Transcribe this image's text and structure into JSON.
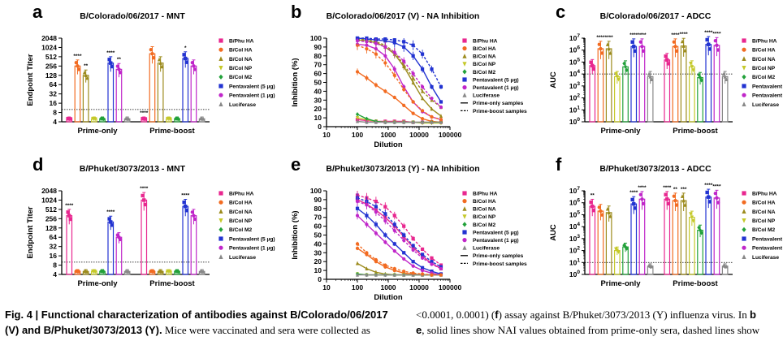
{
  "legend_colors": {
    "B/Phu HA": "#e8278f",
    "B/Col HA": "#f26b21",
    "B/Col NA": "#9c8b1d",
    "B/Col NP": "#c5c92a",
    "B/Col M2": "#22a13a",
    "Pentavalent (5 µg)": "#2233d1",
    "Pentavalent (1 µg)": "#c026c9",
    "Luciferase": "#888888"
  },
  "caption": {
    "left_line1_bold": "Fig. 4 | Functional characterization of antibodies against B/Colorado/06/2017",
    "left_line2_bold": "(V) and B/Phuket/3073/2013 (Y).",
    "left_line2_rest": " Mice were vaccinated and sera were collected as",
    "right_line1_a": "<0.0001, 0.0001) (",
    "right_line1_f": "f",
    "right_line1_b": ") assay against B/Phuket/3073/2013 (Y) influenza virus. In ",
    "right_line1_bold_b": "b",
    "right_line2_e": "e",
    "right_line2_rest": ", solid lines show NAI values obtained from prime-only sera, dashed lines show"
  },
  "chart_data": [
    {
      "panel": "a",
      "type": "bar",
      "title": "B/Colorado/06/2017 - MNT",
      "ylabel": "Endpoint Titer",
      "xlabel": "",
      "log_base": 2,
      "yticks": [
        "2048",
        "1024",
        "512",
        "256",
        "128",
        "64",
        "32",
        "16",
        "8",
        "4"
      ],
      "ylim": [
        4,
        2048
      ],
      "threshold": 10,
      "groups": [
        "Prime-only",
        "Prime-boost"
      ],
      "series": [
        {
          "name": "B/Phu HA",
          "values": [
            5,
            5
          ]
        },
        {
          "name": "B/Col HA",
          "values": [
            256,
            640
          ]
        },
        {
          "name": "B/Col NA",
          "values": [
            128,
            320
          ]
        },
        {
          "name": "B/Col NP",
          "values": [
            5,
            5
          ]
        },
        {
          "name": "B/Col M2",
          "values": [
            5,
            5
          ]
        },
        {
          "name": "Pentavalent (5 µg)",
          "values": [
            320,
            450
          ]
        },
        {
          "name": "Pentavalent (1 µg)",
          "values": [
            200,
            256
          ]
        },
        {
          "name": "Luciferase",
          "values": [
            5,
            5
          ]
        }
      ],
      "significance": [
        [
          "",
          "****",
          "**",
          "",
          "",
          "****",
          "**",
          ""
        ],
        [
          "****",
          "",
          "",
          "",
          "",
          "*",
          "",
          ""
        ]
      ],
      "legend": [
        "B/Phu HA",
        "B/Col HA",
        "B/Col NA",
        "B/Col NP",
        "B/Col M2",
        "Pentavalent (5 µg)",
        "Pentavalent (1 µg)",
        "Luciferase"
      ]
    },
    {
      "panel": "b",
      "type": "line",
      "title": "B/Colorado/06/2017 (V) - NA Inhibition",
      "ylabel": "Inhibition (%)",
      "xlabel": "Dilution",
      "xscale": "log",
      "xticks": [
        "10",
        "100",
        "1000",
        "10000",
        "100000"
      ],
      "yticks": [
        "0",
        "10",
        "20",
        "30",
        "40",
        "50",
        "60",
        "70",
        "80",
        "90",
        "100"
      ],
      "x": [
        100,
        200,
        400,
        800,
        1600,
        3200,
        6400,
        12800,
        25600,
        51200
      ],
      "series": [
        {
          "name": "B/Phu HA",
          "style": "solid",
          "values": [
            8,
            7,
            6,
            6,
            6,
            6,
            5,
            5,
            5,
            5
          ]
        },
        {
          "name": "B/Col HA",
          "style": "solid",
          "values": [
            62,
            55,
            47,
            40,
            33,
            24,
            15,
            9,
            6,
            5
          ]
        },
        {
          "name": "B/Col NA",
          "style": "solid",
          "values": [
            98,
            97,
            95,
            90,
            82,
            68,
            50,
            32,
            20,
            12
          ]
        },
        {
          "name": "B/Col NP",
          "style": "solid",
          "values": [
            10,
            8,
            6,
            5,
            5,
            5,
            5,
            4,
            4,
            4
          ]
        },
        {
          "name": "B/Col M2",
          "style": "solid",
          "values": [
            14,
            9,
            6,
            5,
            5,
            5,
            5,
            5,
            5,
            5
          ]
        },
        {
          "name": "Pentavalent (5 µg)",
          "style": "solid",
          "values": [
            100,
            99,
            98,
            97,
            95,
            90,
            80,
            65,
            45,
            28
          ]
        },
        {
          "name": "Pentavalent (1 µg)",
          "style": "solid",
          "values": [
            93,
            92,
            88,
            80,
            65,
            45,
            28,
            17,
            11,
            8
          ]
        },
        {
          "name": "Luciferase",
          "style": "solid",
          "values": [
            6,
            5,
            5,
            5,
            5,
            5,
            5,
            5,
            5,
            5
          ]
        },
        {
          "name": "B/Col HA",
          "style": "dashed",
          "values": [
            92,
            88,
            82,
            72,
            58,
            42,
            28,
            18,
            11,
            8
          ]
        },
        {
          "name": "B/Col NA",
          "style": "dashed",
          "values": [
            99,
            98,
            96,
            92,
            84,
            70,
            55,
            40,
            30,
            22
          ]
        },
        {
          "name": "Pentavalent (5 µg)",
          "style": "dashed",
          "values": [
            100,
            100,
            99,
            99,
            98,
            96,
            92,
            82,
            65,
            45
          ]
        },
        {
          "name": "Pentavalent (1 µg)",
          "style": "dashed",
          "values": [
            97,
            96,
            94,
            90,
            84,
            74,
            60,
            45,
            32,
            22
          ]
        }
      ],
      "legend": [
        "B/Phu HA",
        "B/Col HA",
        "B/Col NA",
        "B/Col NP",
        "B/Col M2",
        "Pentavalent (5 µg)",
        "Pentavalent (1 µg)",
        "Luciferase",
        "Prime-only samples",
        "Prime-boost samples"
      ]
    },
    {
      "panel": "c",
      "type": "bar",
      "title": "B/Colorado/06/2017 - ADCC",
      "ylabel": "AUC",
      "xlabel": "",
      "log_base": 10,
      "yticks": [
        "10^0",
        "10^1",
        "10^2",
        "10^3",
        "10^4",
        "10^5",
        "10^6",
        "10^7"
      ],
      "ylim": [
        1,
        10000000
      ],
      "threshold": 10000,
      "groups": [
        "Prime-only",
        "Prime-boost"
      ],
      "series": [
        {
          "name": "B/Phu HA",
          "values": [
            50000,
            150000
          ]
        },
        {
          "name": "B/Col HA",
          "values": [
            1300000,
            2000000
          ]
        },
        {
          "name": "B/Col NA",
          "values": [
            1300000,
            2200000
          ]
        },
        {
          "name": "B/Col NP",
          "values": [
            6000,
            40000
          ]
        },
        {
          "name": "B/Col M2",
          "values": [
            40000,
            5000
          ]
        },
        {
          "name": "Pentavalent (5 µg)",
          "values": [
            2000000,
            3000000
          ]
        },
        {
          "name": "Pentavalent (1 µg)",
          "values": [
            2000000,
            2500000
          ]
        },
        {
          "name": "Luciferase",
          "values": [
            6000,
            6000
          ]
        }
      ],
      "significance": [
        [
          "",
          "****",
          "****",
          "",
          "",
          "****",
          "****",
          ""
        ],
        [
          "",
          "****",
          "****",
          "",
          "",
          "****",
          "****",
          ""
        ]
      ],
      "legend": [
        "B/Phu HA",
        "B/Col HA",
        "B/Col NA",
        "B/Col NP",
        "B/Col M2",
        "Pentavalent (5 µg)",
        "Pentavalent (1 µg)",
        "Luciferase"
      ]
    },
    {
      "panel": "d",
      "type": "bar",
      "title": "B/Phuket/3073/2013 - MNT",
      "ylabel": "Endpoint Titer",
      "xlabel": "",
      "log_base": 2,
      "yticks": [
        "2048",
        "1024",
        "512",
        "256",
        "128",
        "64",
        "32",
        "16",
        "8",
        "4"
      ],
      "ylim": [
        4,
        2048
      ],
      "threshold": 10,
      "groups": [
        "Prime-only",
        "Prime-boost"
      ],
      "series": [
        {
          "name": "B/Phu HA",
          "values": [
            320,
            1024
          ]
        },
        {
          "name": "B/Col HA",
          "values": [
            5,
            5
          ]
        },
        {
          "name": "B/Col NA",
          "values": [
            5,
            5
          ]
        },
        {
          "name": "B/Col NP",
          "values": [
            5,
            5
          ]
        },
        {
          "name": "B/Col M2",
          "values": [
            5,
            5
          ]
        },
        {
          "name": "Pentavalent (5 µg)",
          "values": [
            200,
            640
          ]
        },
        {
          "name": "Pentavalent (1 µg)",
          "values": [
            64,
            320
          ]
        },
        {
          "name": "Luciferase",
          "values": [
            5,
            5
          ]
        }
      ],
      "significance": [
        [
          "****",
          "",
          "",
          "",
          "",
          "****",
          "",
          ""
        ],
        [
          "****",
          "",
          "",
          "",
          "",
          "****",
          "",
          ""
        ]
      ],
      "legend": [
        "B/Phu HA",
        "B/Col HA",
        "B/Col NA",
        "B/Col NP",
        "B/Col M2",
        "Pentavalent (5 µg)",
        "Pentavalent (1 µg)",
        "Luciferase"
      ]
    },
    {
      "panel": "e",
      "type": "line",
      "title": "B/Phuket/3073/2013 (Y) - NA Inhibition",
      "ylabel": "Inhibition (%)",
      "xlabel": "Dilution",
      "xscale": "log",
      "xticks": [
        "10",
        "100",
        "1000",
        "10000",
        "100000"
      ],
      "yticks": [
        "0",
        "10",
        "20",
        "30",
        "40",
        "50",
        "60",
        "70",
        "80",
        "90",
        "100"
      ],
      "x": [
        100,
        200,
        400,
        800,
        1600,
        3200,
        6400,
        12800,
        25600,
        51200
      ],
      "series": [
        {
          "name": "B/Phu HA",
          "style": "solid",
          "values": [
            90,
            85,
            78,
            70,
            60,
            48,
            36,
            26,
            18,
            12
          ]
        },
        {
          "name": "B/Col HA",
          "style": "solid",
          "values": [
            35,
            28,
            20,
            14,
            10,
            7,
            6,
            5,
            5,
            5
          ]
        },
        {
          "name": "B/Col NA",
          "style": "solid",
          "values": [
            18,
            12,
            8,
            6,
            5,
            5,
            5,
            5,
            5,
            5
          ]
        },
        {
          "name": "B/Col NP",
          "style": "solid",
          "values": [
            6,
            5,
            5,
            5,
            5,
            5,
            5,
            5,
            5,
            5
          ]
        },
        {
          "name": "B/Col M2",
          "style": "solid",
          "values": [
            6,
            5,
            5,
            5,
            5,
            5,
            5,
            5,
            5,
            5
          ]
        },
        {
          "name": "Pentavalent (5 µg)",
          "style": "solid",
          "values": [
            80,
            72,
            62,
            50,
            40,
            30,
            20,
            13,
            9,
            6
          ]
        },
        {
          "name": "Pentavalent (1 µg)",
          "style": "solid",
          "values": [
            72,
            62,
            52,
            42,
            32,
            23,
            15,
            10,
            7,
            5
          ]
        },
        {
          "name": "Luciferase",
          "style": "solid",
          "values": [
            5,
            5,
            5,
            5,
            5,
            5,
            5,
            5,
            5,
            5
          ]
        },
        {
          "name": "B/Phu HA",
          "style": "dashed",
          "values": [
            95,
            92,
            88,
            82,
            72,
            60,
            46,
            34,
            24,
            16
          ]
        },
        {
          "name": "B/Col HA",
          "style": "dashed",
          "values": [
            40,
            30,
            22,
            16,
            12,
            9,
            7,
            6,
            5,
            5
          ]
        },
        {
          "name": "Pentavalent (5 µg)",
          "style": "dashed",
          "values": [
            92,
            88,
            82,
            74,
            62,
            50,
            38,
            28,
            20,
            14
          ]
        },
        {
          "name": "Pentavalent (1 µg)",
          "style": "dashed",
          "values": [
            88,
            84,
            76,
            66,
            55,
            44,
            33,
            24,
            17,
            12
          ]
        }
      ],
      "legend": [
        "B/Phu HA",
        "B/Col HA",
        "B/Col NA",
        "B/Col NP",
        "B/Col M2",
        "Pentavalent (5 µg)",
        "Pentavalent (1 µg)",
        "Luciferase",
        "Prime-only samples",
        "Prime-boost samples"
      ]
    },
    {
      "panel": "f",
      "type": "bar",
      "title": "B/Phuket/3073/2013 - ADCC",
      "ylabel": "AUC",
      "xlabel": "",
      "log_base": 10,
      "yticks": [
        "10^0",
        "10^1",
        "10^2",
        "10^3",
        "10^4",
        "10^5",
        "10^6",
        "10^7"
      ],
      "ylim": [
        1,
        10000000
      ],
      "threshold": 10,
      "groups": [
        "Prime-only",
        "Prime-boost"
      ],
      "series": [
        {
          "name": "B/Phu HA",
          "values": [
            500000,
            2000000
          ]
        },
        {
          "name": "B/Col HA",
          "values": [
            200000,
            1500000
          ]
        },
        {
          "name": "B/Col NA",
          "values": [
            150000,
            1500000
          ]
        },
        {
          "name": "B/Col NP",
          "values": [
            100,
            60000
          ]
        },
        {
          "name": "B/Col M2",
          "values": [
            200,
            5000
          ]
        },
        {
          "name": "Pentavalent (5 µg)",
          "values": [
            800000,
            3000000
          ]
        },
        {
          "name": "Pentavalent (1 µg)",
          "values": [
            2000000,
            2500000
          ]
        },
        {
          "name": "Luciferase",
          "values": [
            5,
            5
          ]
        }
      ],
      "significance": [
        [
          "**",
          "",
          "",
          "",
          "",
          "****",
          "****",
          ""
        ],
        [
          "****",
          "**",
          "***",
          "",
          "",
          "****",
          "****",
          ""
        ]
      ],
      "legend": [
        "B/Phu HA",
        "B/Col HA",
        "B/Col NA",
        "B/Col NP",
        "B/Col M2",
        "Pentavalent (5 µg)",
        "Pentavalent (1 µg)",
        "Luciferase"
      ]
    }
  ]
}
